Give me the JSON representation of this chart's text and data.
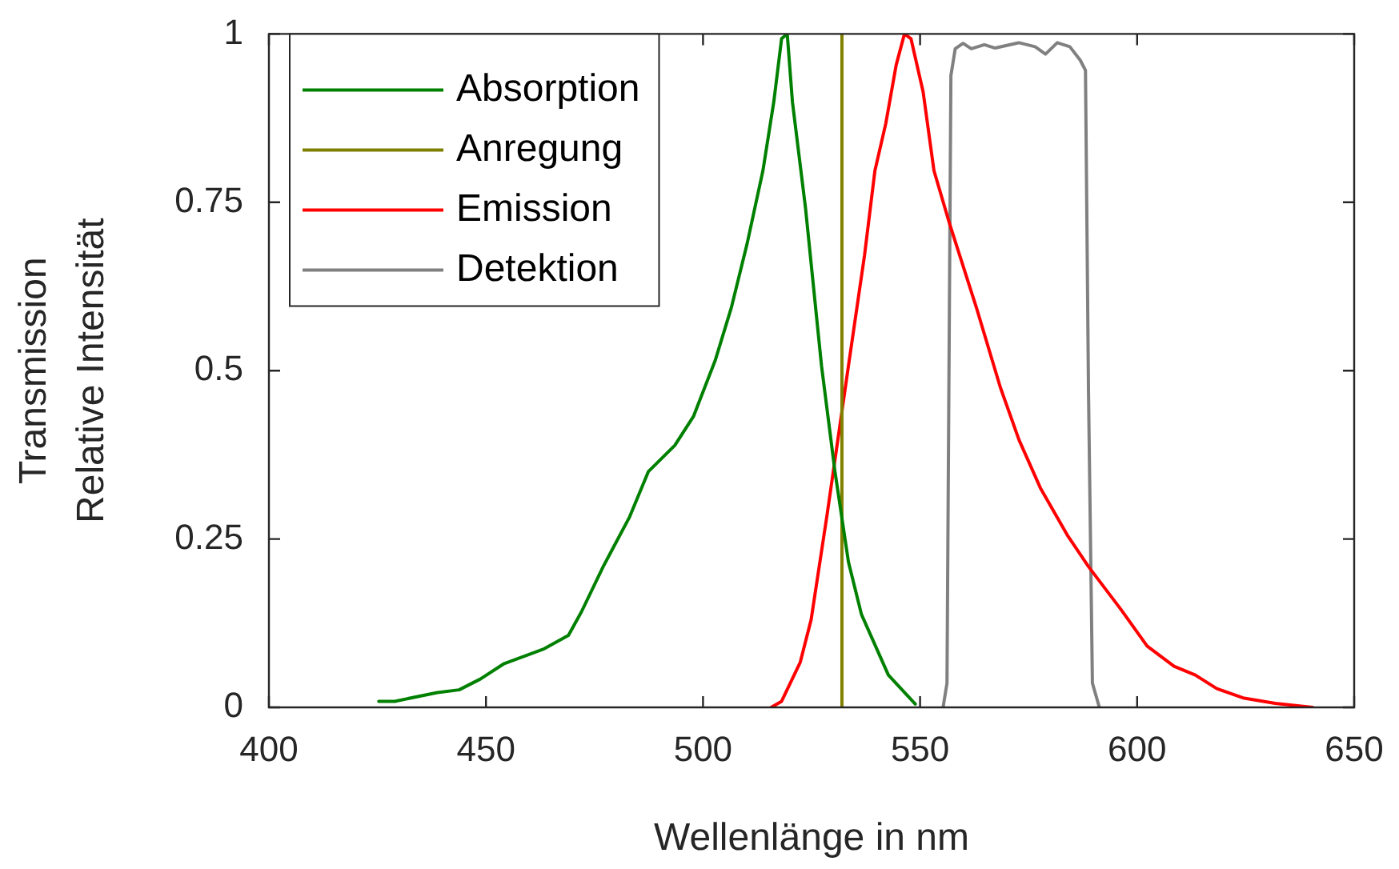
{
  "chart_data": {
    "type": "line",
    "xlabel": "Wellenlänge in nm",
    "ylabel": "Transmission\nRelative Intensität",
    "xlim": [
      400,
      650
    ],
    "xticks": [
      400,
      450,
      500,
      550,
      600,
      650
    ],
    "ylim": [
      0,
      1
    ],
    "yticks": [
      0,
      0.25,
      0.5,
      0.75,
      1
    ],
    "legend": "top left",
    "line_style": "solid",
    "series": [
      {
        "name": "Absorption",
        "color": "#008000",
        "x": [
          425.3,
          429.0,
          438.8,
          443.8,
          448.7,
          454.2,
          463.4,
          469.0,
          472.0,
          477.0,
          483.1,
          487.4,
          493.5,
          497.8,
          502.8,
          506.5,
          510.1,
          513.8,
          516.3,
          518.1,
          519.4,
          520.6,
          523.6,
          527.3,
          530.4,
          533.5,
          536.5,
          542.7,
          548.9
        ],
        "values": [
          0.009,
          0.009,
          0.022,
          0.026,
          0.042,
          0.065,
          0.087,
          0.107,
          0.142,
          0.209,
          0.283,
          0.35,
          0.389,
          0.432,
          0.515,
          0.593,
          0.687,
          0.797,
          0.899,
          0.993,
          1.0,
          0.899,
          0.742,
          0.507,
          0.35,
          0.216,
          0.138,
          0.048,
          0.005
        ]
      },
      {
        "name": "Anregung",
        "color": "#808000",
        "x": [
          532,
          532
        ],
        "values": [
          0,
          1
        ]
      },
      {
        "name": "Emission",
        "color": "#ff0000",
        "x": [
          515.7,
          518.1,
          522.4,
          524.9,
          528.6,
          533.5,
          537.2,
          539.6,
          542.1,
          544.5,
          546.4,
          547.9,
          550.7,
          553.2,
          556.8,
          563.0,
          568.5,
          572.8,
          577.7,
          583.9,
          588.8,
          596.2,
          602.3,
          608.5,
          613.4,
          618.3,
          624.4,
          631.8,
          640.4
        ],
        "values": [
          0,
          0.009,
          0.067,
          0.13,
          0.287,
          0.507,
          0.671,
          0.797,
          0.867,
          0.954,
          1.0,
          0.993,
          0.914,
          0.797,
          0.718,
          0.593,
          0.475,
          0.397,
          0.326,
          0.256,
          0.209,
          0.146,
          0.091,
          0.061,
          0.048,
          0.028,
          0.014,
          0.006,
          0
        ]
      },
      {
        "name": "Detektion",
        "color": "#808080",
        "x": [
          555.3,
          556.2,
          557.1,
          558.1,
          559.9,
          561.8,
          564.8,
          567.3,
          572.8,
          576.5,
          578.9,
          581.6,
          584.5,
          586.9,
          588.1,
          588.8,
          589.7,
          591.3
        ],
        "values": [
          0,
          0.036,
          0.938,
          0.978,
          0.986,
          0.978,
          0.984,
          0.979,
          0.987,
          0.981,
          0.97,
          0.987,
          0.981,
          0.961,
          0.946,
          0.468,
          0.036,
          0
        ]
      }
    ]
  }
}
